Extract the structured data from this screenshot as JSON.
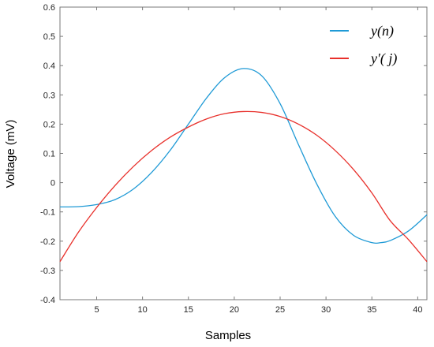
{
  "chart_data": {
    "type": "line",
    "xlabel": "Samples",
    "ylabel": "Voltage (mV)",
    "xlim": [
      1,
      41
    ],
    "ylim": [
      -0.4,
      0.6
    ],
    "x_ticks": [
      5,
      10,
      15,
      20,
      25,
      30,
      35,
      40
    ],
    "y_ticks": [
      -0.4,
      -0.3,
      -0.2,
      -0.1,
      0,
      0.1,
      0.2,
      0.3,
      0.4,
      0.5,
      0.6
    ],
    "x_tick_labels": [
      "5",
      "10",
      "15",
      "20",
      "25",
      "30",
      "35",
      "40"
    ],
    "y_tick_labels": [
      "-0.4",
      "-0.3",
      "-0.2",
      "-0.1",
      "0",
      "0.1",
      "0.2",
      "0.3",
      "0.4",
      "0.5",
      "0.6"
    ],
    "grid": false,
    "legend_position": "top-right",
    "series": [
      {
        "name": "y(n)",
        "color": "#1f9ad6",
        "x": [
          1,
          3,
          5,
          7,
          9,
          11,
          13,
          15,
          17,
          19,
          21,
          23,
          25,
          27,
          29,
          31,
          33,
          35,
          36,
          37,
          39,
          41
        ],
        "y": [
          -0.083,
          -0.082,
          -0.075,
          -0.058,
          -0.022,
          0.035,
          0.11,
          0.2,
          0.29,
          0.36,
          0.39,
          0.365,
          0.27,
          0.13,
          -0.005,
          -0.115,
          -0.18,
          -0.205,
          -0.205,
          -0.198,
          -0.165,
          -0.11
        ]
      },
      {
        "name": "y'(j)",
        "color": "#e8302b",
        "x": [
          1,
          3,
          5,
          7,
          9,
          11,
          13,
          15,
          17,
          19,
          21,
          23,
          25,
          27,
          29,
          31,
          33,
          35,
          37,
          39,
          41
        ],
        "y": [
          -0.27,
          -0.17,
          -0.085,
          -0.01,
          0.055,
          0.11,
          0.155,
          0.19,
          0.218,
          0.236,
          0.243,
          0.24,
          0.226,
          0.2,
          0.162,
          0.11,
          0.045,
          -0.035,
          -0.13,
          -0.195,
          -0.27
        ]
      }
    ]
  },
  "legend": {
    "items": [
      {
        "label": "y(n)",
        "color": "#1f9ad6"
      },
      {
        "label": "y′( j)",
        "color": "#e8302b"
      }
    ]
  }
}
